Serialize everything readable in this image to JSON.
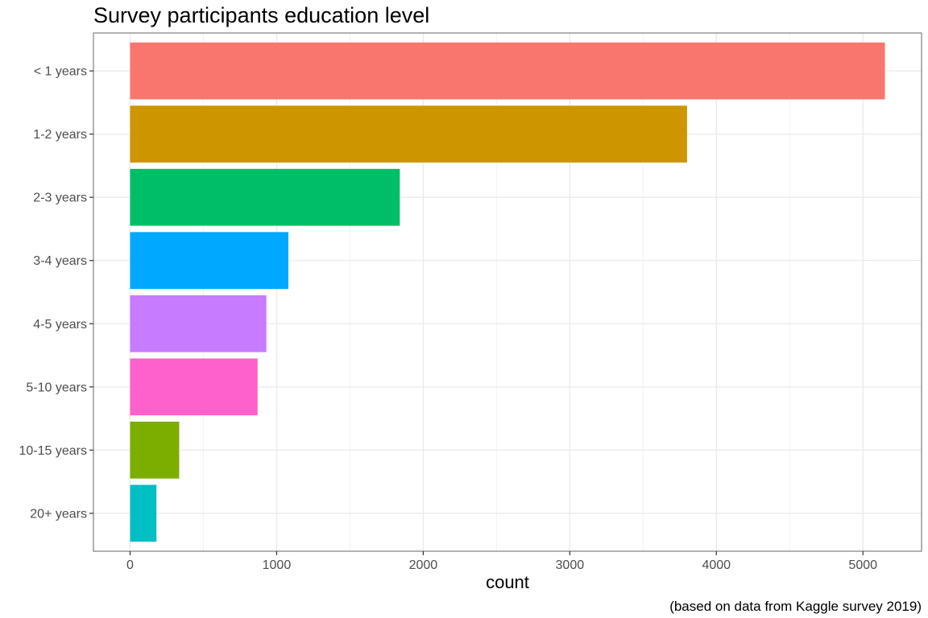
{
  "chart_data": {
    "type": "bar",
    "orientation": "horizontal",
    "title": "Survey participants education level",
    "xlabel": "count",
    "ylabel": "",
    "caption": "(based on data from Kaggle survey 2019)",
    "categories": [
      "< 1 years",
      "1-2 years",
      "2-3 years",
      "3-4 years",
      "4-5 years",
      "5-10 years",
      "10-15 years",
      "20+ years"
    ],
    "values": [
      5150,
      3800,
      1840,
      1080,
      930,
      870,
      335,
      180
    ],
    "colors": [
      "#F8766D",
      "#CD9600",
      "#00BE67",
      "#00A9FF",
      "#C77CFF",
      "#FF61CC",
      "#7CAE00",
      "#00BFC4"
    ],
    "xlim": [
      -250,
      5400
    ],
    "xticks": [
      0,
      1000,
      2000,
      3000,
      4000,
      5000
    ],
    "xtick_labels": [
      "0",
      "1000",
      "2000",
      "3000",
      "4000",
      "5000"
    ],
    "grid": true,
    "legend": "none"
  }
}
